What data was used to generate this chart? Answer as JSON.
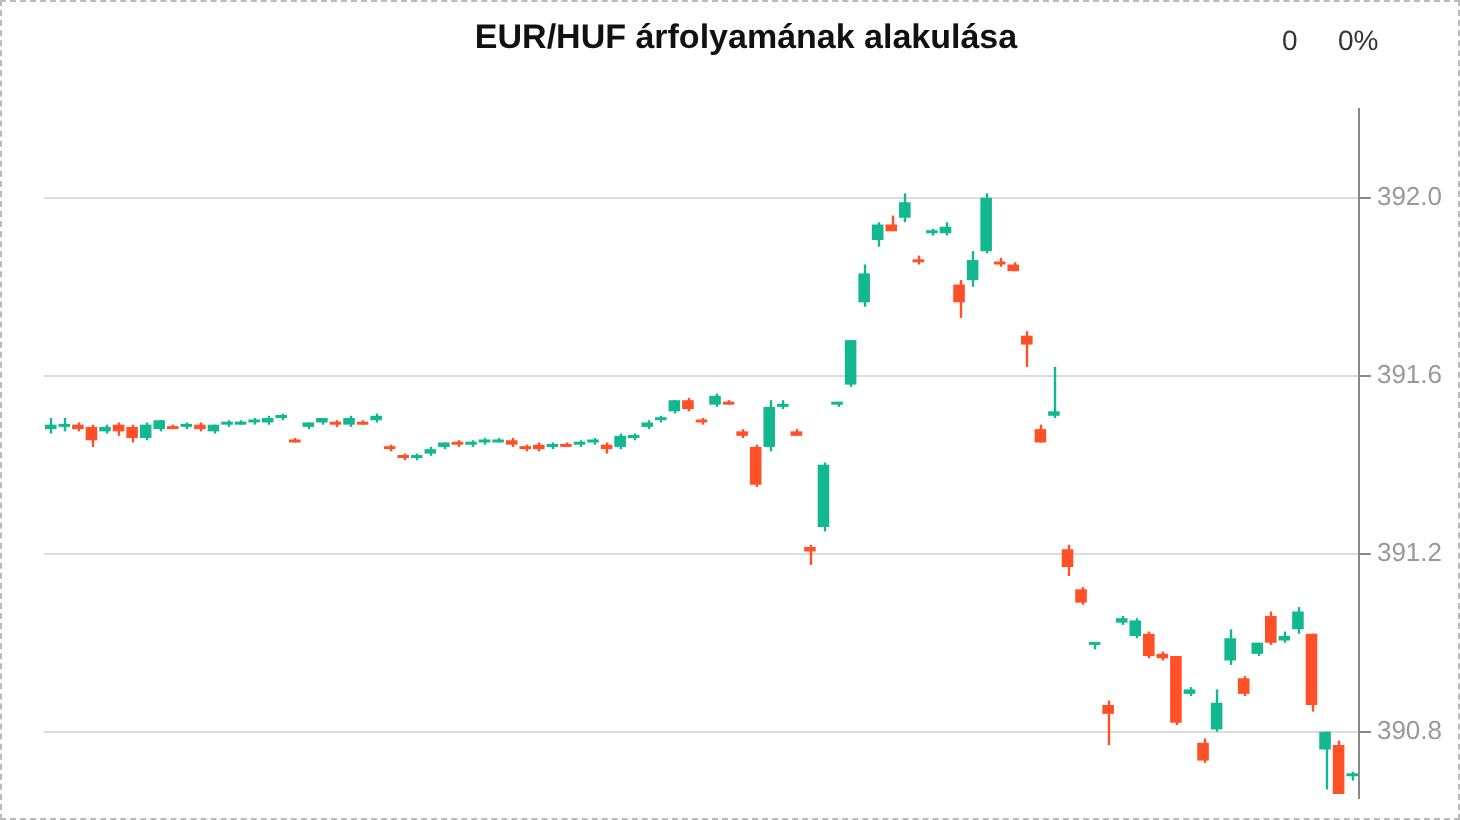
{
  "chart_data": {
    "type": "candlestick",
    "title": "EUR/HUF árfolyamának alakulása",
    "annotations": [
      "0",
      "0%"
    ],
    "categories": [
      null,
      null,
      null,
      null,
      null,
      null,
      null,
      null,
      null,
      null,
      null,
      null,
      null,
      null,
      null,
      null,
      null,
      null,
      null,
      null,
      null,
      null,
      null,
      null,
      null,
      null,
      null,
      null,
      null,
      null,
      null,
      null,
      null,
      null,
      null,
      null,
      null,
      null,
      null,
      null,
      null,
      null,
      null,
      null,
      null,
      null,
      null,
      null,
      null,
      null,
      null,
      null,
      null,
      null,
      null,
      null,
      null,
      null,
      null,
      null,
      null,
      null,
      null,
      null,
      null,
      null,
      null,
      null,
      null,
      null,
      null,
      null,
      null,
      null,
      null,
      null,
      null,
      null,
      null,
      null,
      null,
      null,
      null,
      null,
      null,
      null,
      null,
      null,
      null,
      null,
      null,
      null,
      null,
      null,
      null,
      null,
      null
    ],
    "ohlc": [
      [
        391.48,
        391.505,
        391.47,
        391.49
      ],
      [
        391.485,
        391.505,
        391.475,
        391.49
      ],
      [
        391.49,
        391.495,
        391.475,
        391.48
      ],
      [
        391.485,
        391.49,
        391.44,
        391.455
      ],
      [
        391.475,
        391.49,
        391.47,
        391.485
      ],
      [
        391.49,
        391.495,
        391.465,
        391.475
      ],
      [
        391.485,
        391.49,
        391.45,
        391.46
      ],
      [
        391.46,
        391.495,
        391.455,
        391.49
      ],
      [
        391.48,
        391.5,
        391.475,
        391.5
      ],
      [
        391.485,
        391.49,
        391.48,
        391.48
      ],
      [
        391.485,
        391.495,
        391.48,
        391.49
      ],
      [
        391.49,
        391.495,
        391.475,
        391.48
      ],
      [
        391.475,
        391.49,
        391.47,
        391.49
      ],
      [
        391.49,
        391.5,
        391.485,
        391.495
      ],
      [
        391.49,
        391.5,
        391.49,
        391.495
      ],
      [
        391.495,
        391.505,
        391.49,
        391.5
      ],
      [
        391.495,
        391.51,
        391.49,
        391.505
      ],
      [
        391.505,
        391.515,
        391.5,
        391.51
      ],
      [
        391.455,
        391.46,
        391.45,
        391.45
      ],
      [
        391.485,
        391.495,
        391.48,
        391.495
      ],
      [
        391.495,
        391.505,
        391.49,
        391.505
      ],
      [
        391.495,
        391.5,
        391.485,
        391.49
      ],
      [
        391.49,
        391.51,
        391.485,
        391.505
      ],
      [
        391.495,
        391.5,
        391.49,
        391.49
      ],
      [
        391.5,
        391.515,
        391.495,
        391.51
      ],
      [
        391.44,
        391.445,
        391.43,
        391.435
      ],
      [
        391.42,
        391.425,
        391.41,
        391.415
      ],
      [
        391.415,
        391.425,
        391.41,
        391.42
      ],
      [
        391.425,
        391.44,
        391.42,
        391.435
      ],
      [
        391.44,
        391.45,
        391.435,
        391.45
      ],
      [
        391.45,
        391.455,
        391.44,
        391.445
      ],
      [
        391.445,
        391.455,
        391.44,
        391.45
      ],
      [
        391.45,
        391.46,
        391.445,
        391.455
      ],
      [
        391.45,
        391.46,
        391.45,
        391.455
      ],
      [
        391.455,
        391.46,
        391.44,
        391.445
      ],
      [
        391.44,
        391.445,
        391.43,
        391.435
      ],
      [
        391.445,
        391.45,
        391.43,
        391.435
      ],
      [
        391.44,
        391.45,
        391.435,
        391.445
      ],
      [
        391.445,
        391.45,
        391.44,
        391.44
      ],
      [
        391.445,
        391.455,
        391.44,
        391.45
      ],
      [
        391.45,
        391.46,
        391.445,
        391.455
      ],
      [
        391.445,
        391.45,
        391.425,
        391.435
      ],
      [
        391.44,
        391.47,
        391.435,
        391.465
      ],
      [
        391.46,
        391.47,
        391.455,
        391.465
      ],
      [
        391.485,
        391.5,
        391.48,
        391.495
      ],
      [
        391.5,
        391.51,
        391.495,
        391.505
      ],
      [
        391.52,
        391.545,
        391.515,
        391.545
      ],
      [
        391.545,
        391.55,
        391.52,
        391.525
      ],
      [
        391.5,
        391.505,
        391.49,
        391.495
      ],
      [
        391.535,
        391.56,
        391.53,
        391.555
      ],
      [
        391.54,
        391.545,
        391.535,
        391.535
      ],
      [
        391.475,
        391.48,
        391.46,
        391.465
      ],
      [
        391.44,
        391.445,
        391.35,
        391.355
      ],
      [
        391.44,
        391.545,
        391.43,
        391.53
      ],
      [
        391.53,
        391.545,
        391.525,
        391.535
      ],
      [
        391.475,
        391.48,
        391.465,
        391.465
      ],
      [
        391.215,
        391.22,
        391.175,
        391.205
      ],
      [
        391.26,
        391.405,
        391.25,
        391.4
      ],
      [
        391.535,
        391.54,
        391.53,
        391.54
      ],
      [
        391.58,
        391.68,
        391.575,
        391.68
      ],
      [
        391.765,
        391.85,
        391.755,
        391.83
      ],
      [
        391.905,
        391.945,
        391.89,
        391.94
      ],
      [
        391.94,
        391.96,
        391.925,
        391.925
      ],
      [
        391.955,
        392.01,
        391.945,
        391.99
      ],
      [
        391.86,
        391.87,
        391.85,
        391.855
      ],
      [
        391.92,
        391.93,
        391.915,
        391.925
      ],
      [
        391.92,
        391.945,
        391.915,
        391.935
      ],
      [
        391.805,
        391.815,
        391.73,
        391.765
      ],
      [
        391.815,
        391.88,
        391.8,
        391.86
      ],
      [
        391.88,
        392.01,
        391.875,
        392.0
      ],
      [
        391.855,
        391.865,
        391.845,
        391.85
      ],
      [
        391.85,
        391.855,
        391.835,
        391.835
      ],
      [
        391.69,
        391.7,
        391.62,
        391.67
      ],
      [
        391.48,
        391.49,
        391.45,
        391.45
      ],
      [
        391.51,
        391.62,
        391.505,
        391.52
      ],
      [
        391.21,
        391.22,
        391.15,
        391.17
      ],
      [
        391.12,
        391.125,
        391.085,
        391.09
      ],
      [
        390.995,
        391.0,
        390.985,
        391.0
      ],
      [
        390.86,
        390.87,
        390.77,
        390.84
      ],
      [
        391.045,
        391.06,
        391.04,
        391.055
      ],
      [
        391.015,
        391.055,
        391.01,
        391.05
      ],
      [
        391.02,
        391.025,
        390.965,
        390.97
      ],
      [
        390.975,
        390.98,
        390.96,
        390.965
      ],
      [
        390.97,
        390.97,
        390.815,
        390.82
      ],
      [
        390.885,
        390.9,
        390.88,
        390.895
      ],
      [
        390.775,
        390.785,
        390.73,
        390.735
      ],
      [
        390.805,
        390.895,
        390.8,
        390.865
      ],
      [
        390.96,
        391.03,
        390.95,
        391.01
      ],
      [
        390.92,
        390.925,
        390.88,
        390.885
      ],
      [
        390.975,
        391.0,
        390.97,
        391.0
      ],
      [
        391.06,
        391.07,
        390.995,
        391.0
      ],
      [
        391.005,
        391.025,
        391.0,
        391.015
      ],
      [
        391.03,
        391.08,
        391.02,
        391.07
      ],
      [
        391.02,
        391.02,
        390.845,
        390.86
      ],
      [
        390.76,
        390.8,
        390.67,
        390.8
      ],
      [
        390.77,
        390.78,
        390.66,
        390.66
      ],
      [
        390.7,
        390.71,
        390.69,
        390.705
      ]
    ],
    "colors": [
      "#14b890",
      "#14b890",
      "#ff5027",
      "#ff5027",
      "#14b890",
      "#ff5027",
      "#ff5027",
      "#14b890",
      "#14b890",
      "#ff5027",
      "#14b890",
      "#ff5027",
      "#14b890",
      "#14b890",
      "#14b890",
      "#14b890",
      "#14b890",
      "#14b890",
      "#ff5027",
      "#14b890",
      "#14b890",
      "#ff5027",
      "#14b890",
      "#ff5027",
      "#14b890",
      "#ff5027",
      "#ff5027",
      "#14b890",
      "#14b890",
      "#14b890",
      "#ff5027",
      "#14b890",
      "#14b890",
      "#14b890",
      "#ff5027",
      "#ff5027",
      "#ff5027",
      "#14b890",
      "#ff5027",
      "#14b890",
      "#14b890",
      "#ff5027",
      "#14b890",
      "#14b890",
      "#14b890",
      "#14b890",
      "#14b890",
      "#ff5027",
      "#ff5027",
      "#14b890",
      "#ff5027",
      "#ff5027",
      "#ff5027",
      "#14b890",
      "#14b890",
      "#ff5027",
      "#ff5027",
      "#14b890",
      "#14b890",
      "#14b890",
      "#14b890",
      "#14b890",
      "#ff5027",
      "#14b890",
      "#ff5027",
      "#14b890",
      "#14b890",
      "#ff5027",
      "#14b890",
      "#14b890",
      "#ff5027",
      "#ff5027",
      "#ff5027",
      "#ff5027",
      "#14b890",
      "#ff5027",
      "#ff5027",
      "#14b890",
      "#ff5027",
      "#14b890",
      "#14b890",
      "#ff5027",
      "#ff5027",
      "#ff5027",
      "#14b890",
      "#ff5027",
      "#14b890",
      "#14b890",
      "#ff5027",
      "#14b890",
      "#ff5027",
      "#14b890",
      "#14b890",
      "#ff5027",
      "#14b890",
      "#ff5027",
      "#14b890"
    ],
    "ylim": [
      390.65,
      392.2
    ],
    "yticks": [
      {
        "value": 390.8,
        "label": "390.8"
      },
      {
        "value": 391.2,
        "label": "391.2"
      },
      {
        "value": 391.6,
        "label": "391.6"
      },
      {
        "value": 392,
        "label": "392.0"
      }
    ],
    "grid": "y",
    "tick_labels": "y",
    "legend": false
  }
}
